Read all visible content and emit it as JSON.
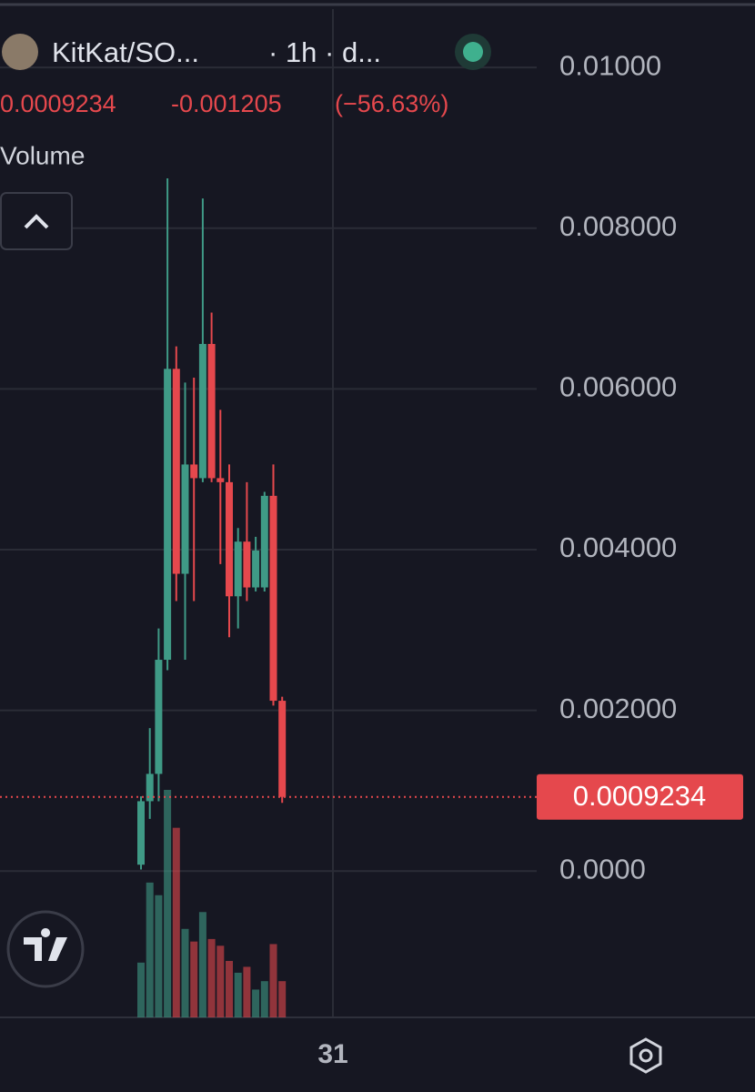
{
  "chart_data": {
    "type": "candlestick",
    "title": "KitKat/SO...",
    "interval": "· 1h · d...",
    "last_price": 0.0009234,
    "change": -0.001205,
    "change_pct": -56.63,
    "change_pct_label": "(−56.63%)",
    "volume_label": "Volume",
    "date_label": "31",
    "up_color": "#3f9a86",
    "down_color": "#e5484d",
    "categories": [
      null,
      null,
      null,
      null,
      null,
      null,
      null,
      null,
      null,
      null,
      null,
      null,
      null,
      null,
      null,
      null,
      null
    ],
    "open": [
      8e-05,
      0.00087,
      0.00121,
      0.00263,
      0.00625,
      0.0037,
      0.00506,
      0.00489,
      0.00656,
      0.00489,
      0.00484,
      0.00342,
      0.0041,
      0.00353,
      0.00353,
      0.00467,
      0.00212
    ],
    "high": [
      0.00093,
      0.00178,
      0.00302,
      0.00862,
      0.00653,
      0.00608,
      0.00614,
      0.00837,
      0.00695,
      0.00574,
      0.00506,
      0.00427,
      0.00484,
      0.00416,
      0.00472,
      0.00506,
      0.00217
    ],
    "low": [
      2e-05,
      0.00065,
      0.00087,
      0.0025,
      0.00336,
      0.00263,
      0.00336,
      0.00484,
      0.00484,
      0.00382,
      0.00291,
      0.00302,
      0.00336,
      0.00348,
      0.00348,
      0.00206,
      0.00085
    ],
    "close": [
      0.00087,
      0.00121,
      0.00263,
      0.00625,
      0.0037,
      0.00506,
      0.00489,
      0.00656,
      0.00489,
      0.00484,
      0.00342,
      0.0041,
      0.00353,
      0.00399,
      0.00467,
      0.00212,
      0.0009234
    ],
    "volume": [
      65,
      160,
      145,
      270,
      225,
      105,
      90,
      125,
      93,
      85,
      67,
      53,
      60,
      33,
      43,
      87,
      43
    ],
    "ylim": [
      -0.00182,
      0.01084
    ],
    "yticks": [
      {
        "value": 0,
        "label": "0.0000"
      },
      {
        "value": 0.002,
        "label": "0.002000"
      },
      {
        "value": 0.004,
        "label": "0.004000"
      },
      {
        "value": 0.006,
        "label": "0.006000"
      },
      {
        "value": 0.008,
        "label": "0.008000"
      },
      {
        "value": 0.01,
        "label": "0.01000"
      }
    ],
    "grid": true
  }
}
